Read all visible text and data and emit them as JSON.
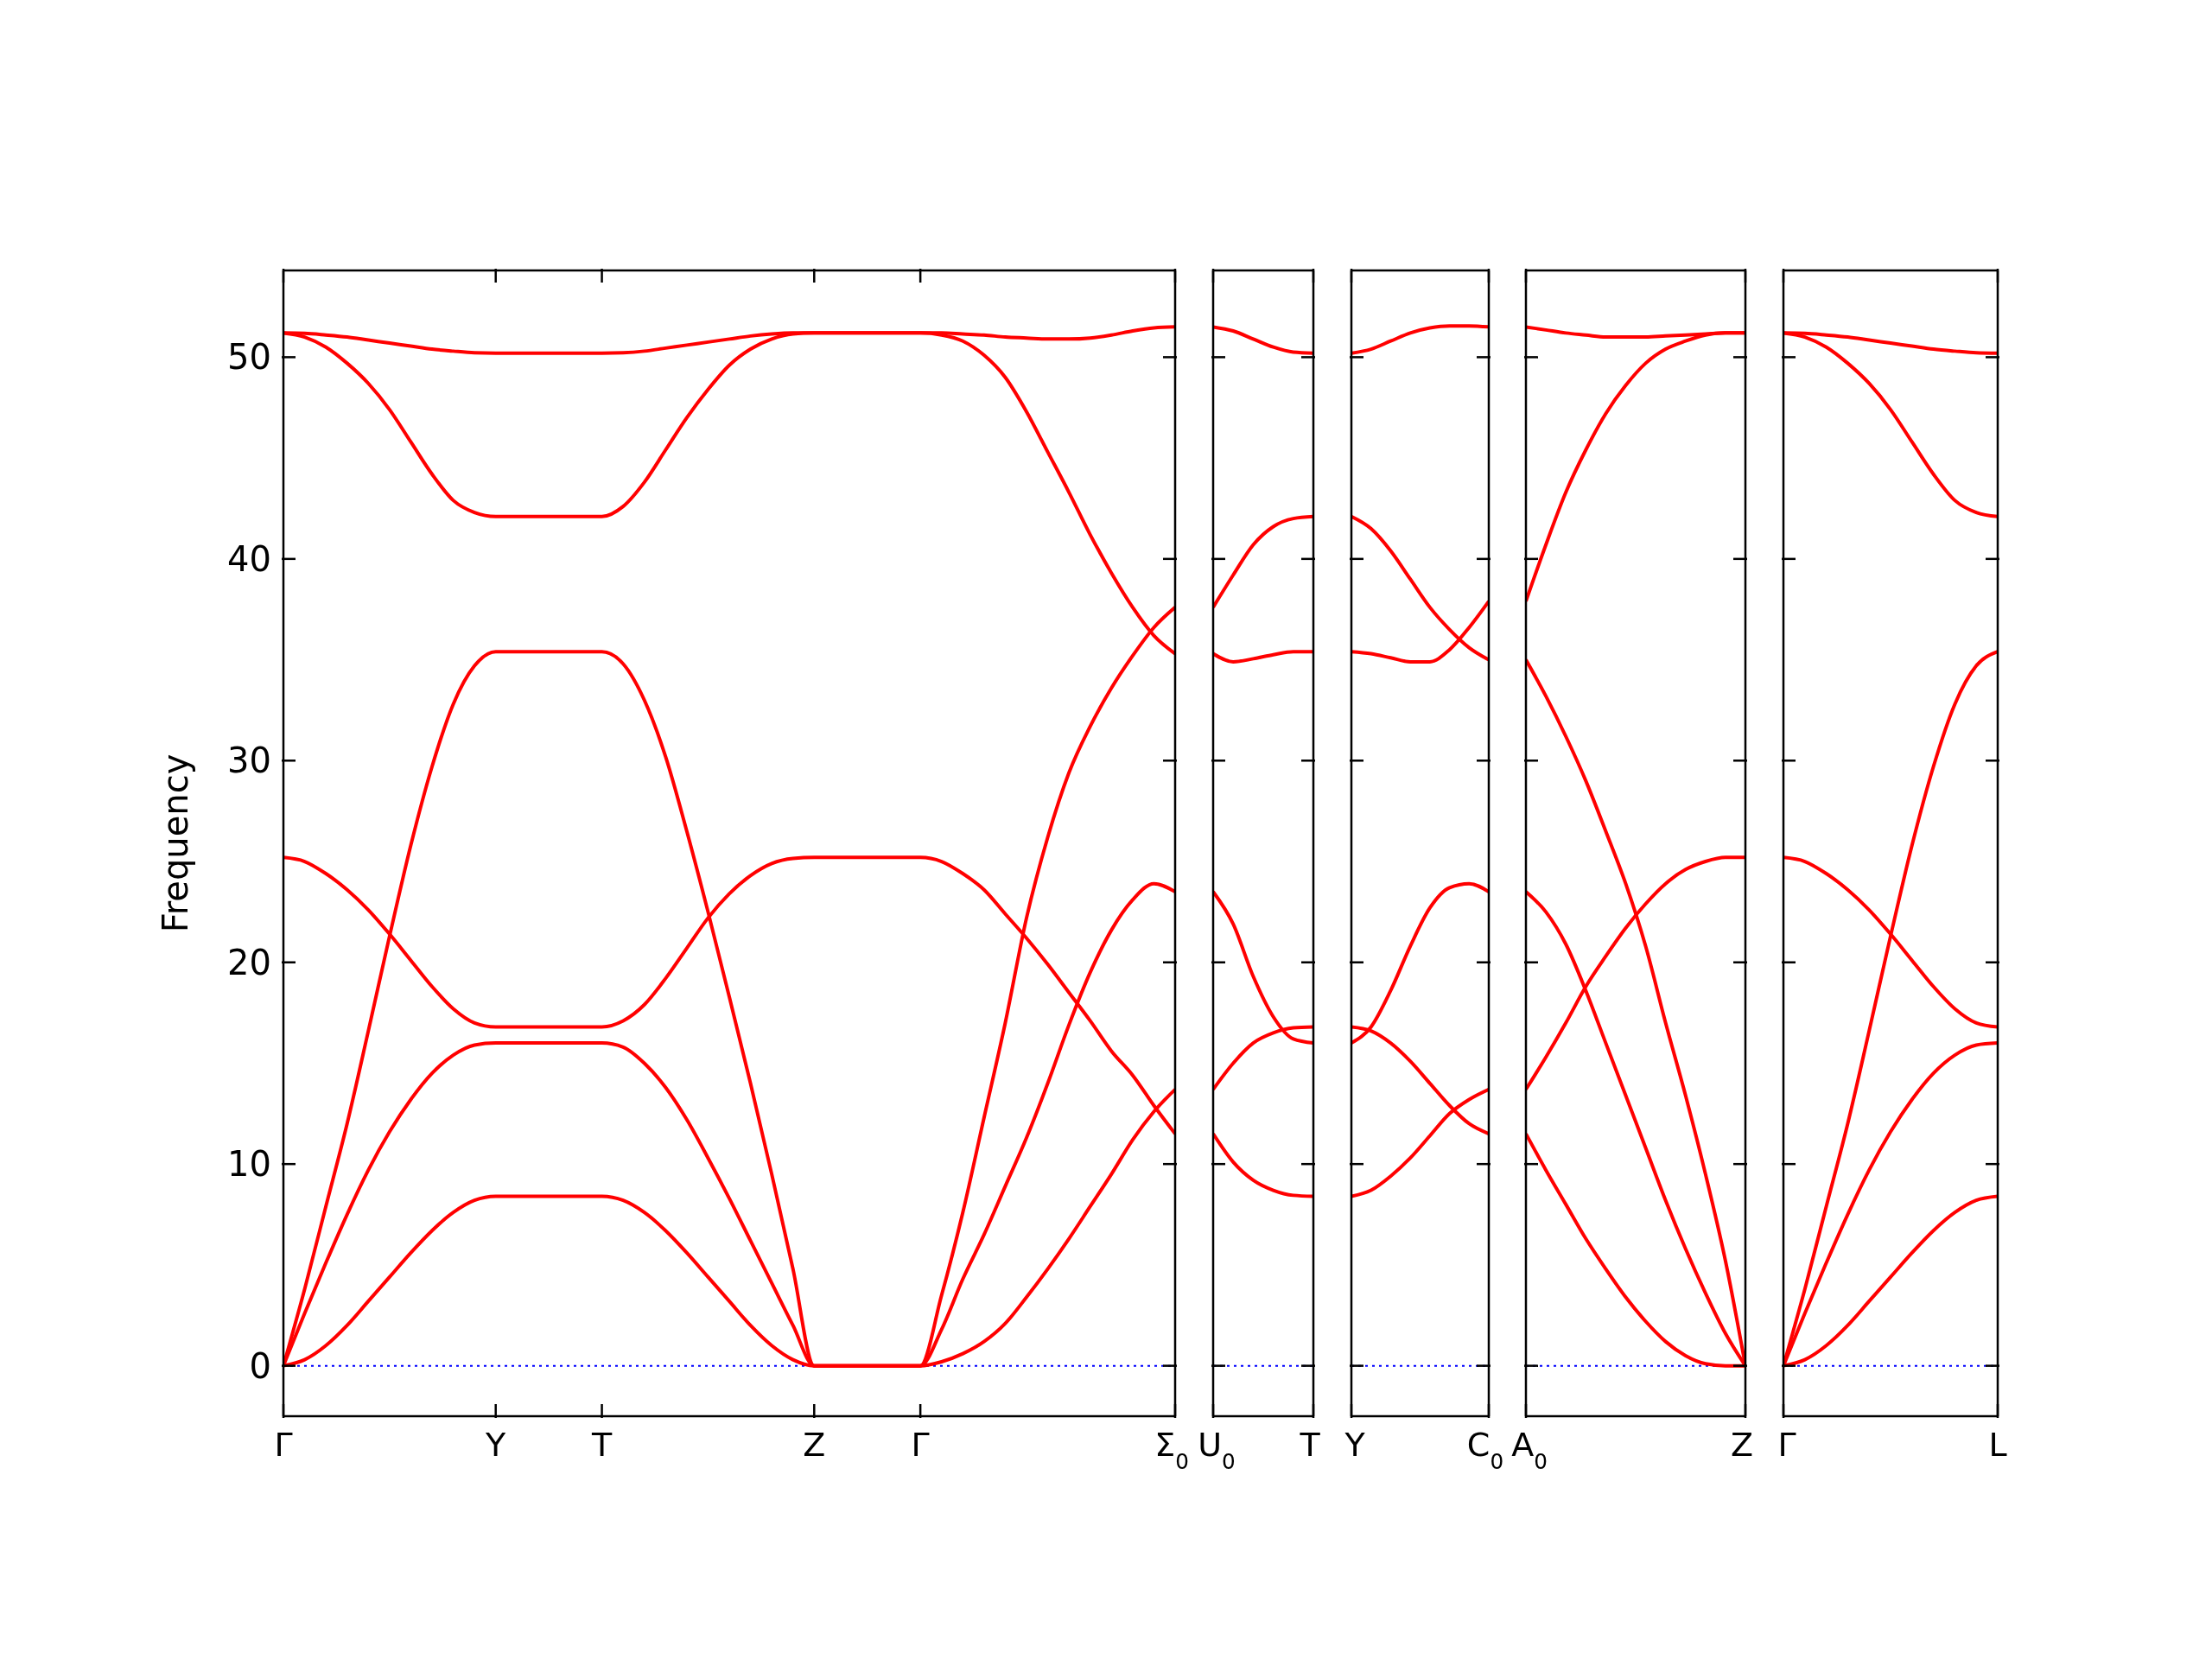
{
  "chart_data": [
    {
      "type": "line",
      "ylabel": "Frequency",
      "categories": [
        "Γ",
        null,
        null,
        null,
        null,
        null,
        null,
        null,
        null,
        null,
        "Y",
        null,
        null,
        null,
        null,
        "T",
        null,
        null,
        null,
        null,
        null,
        null,
        null,
        null,
        null,
        "Z",
        null,
        null,
        null,
        null,
        "Γ",
        null,
        null,
        null,
        null,
        null,
        null,
        null,
        null,
        null,
        null,
        null,
        "Σ$_{0}$"
      ],
      "series": [
        {
          "color": "#ff0000",
          "values": [
            51.2,
            51.18,
            51.1,
            51.0,
            50.85,
            50.7,
            50.55,
            50.4,
            50.3,
            50.22,
            50.2,
            50.2,
            50.2,
            50.2,
            50.2,
            50.2,
            50.22,
            50.3,
            50.45,
            50.6,
            50.75,
            50.9,
            51.05,
            51.15,
            51.2,
            51.2,
            51.2,
            51.2,
            51.2,
            51.2,
            51.2,
            51.2,
            51.15,
            51.1,
            51.0,
            50.95,
            50.9,
            50.9,
            50.95,
            51.1,
            51.3,
            51.45,
            51.5
          ]
        },
        {
          "color": "#ff0000",
          "values": [
            51.2,
            51.0,
            50.5,
            49.7,
            48.7,
            47.4,
            45.8,
            44.2,
            42.9,
            42.3,
            42.1,
            42.1,
            42.1,
            42.1,
            42.1,
            42.1,
            42.6,
            43.8,
            45.4,
            47.0,
            48.4,
            49.6,
            50.4,
            50.9,
            51.15,
            51.2,
            51.2,
            51.2,
            51.2,
            51.2,
            51.2,
            51.1,
            50.8,
            50.1,
            49.0,
            47.3,
            45.3,
            43.3,
            41.2,
            39.3,
            37.6,
            36.2,
            35.3
          ]
        },
        {
          "color": "#ff0000",
          "values": [
            0,
            3.8,
            7.9,
            12.0,
            16.6,
            21.3,
            25.8,
            29.7,
            32.8,
            34.7,
            35.4,
            35.4,
            35.4,
            35.4,
            35.4,
            35.4,
            34.8,
            33.0,
            30.2,
            26.5,
            22.5,
            18.3,
            14.0,
            9.5,
            4.8,
            0,
            0,
            0,
            0,
            0,
            0,
            3.5,
            7.6,
            12.3,
            17.0,
            22.2,
            26.2,
            29.4,
            31.7,
            33.6,
            35.2,
            36.6,
            37.6
          ]
        },
        {
          "color": "#ff0000",
          "values": [
            25.2,
            25.0,
            24.4,
            23.6,
            22.6,
            21.4,
            20.1,
            18.8,
            17.7,
            17.0,
            16.8,
            16.8,
            16.8,
            16.8,
            16.8,
            16.8,
            17.1,
            17.9,
            19.2,
            20.7,
            22.2,
            23.4,
            24.3,
            24.9,
            25.15,
            25.2,
            25.2,
            25.2,
            25.2,
            25.2,
            25.2,
            25.0,
            24.4,
            23.6,
            22.4,
            21.2,
            19.9,
            18.5,
            17.1,
            15.6,
            14.4,
            12.9,
            11.5
          ]
        },
        {
          "color": "#ff0000",
          "values": [
            0,
            2.6,
            5.1,
            7.5,
            9.7,
            11.6,
            13.2,
            14.5,
            15.4,
            15.9,
            16.0,
            16.0,
            16.0,
            16.0,
            16.0,
            16.0,
            15.8,
            15.0,
            13.8,
            12.2,
            10.3,
            8.3,
            6.2,
            4.1,
            2.0,
            0,
            0,
            0,
            0,
            0,
            0,
            1.8,
            4.3,
            6.5,
            8.9,
            11.3,
            14.0,
            16.9,
            19.5,
            21.6,
            23.1,
            23.9,
            23.5
          ]
        },
        {
          "color": "#ff0000",
          "values": [
            0,
            0.3,
            1.0,
            2.0,
            3.2,
            4.4,
            5.6,
            6.7,
            7.6,
            8.2,
            8.4,
            8.4,
            8.4,
            8.4,
            8.4,
            8.4,
            8.2,
            7.6,
            6.7,
            5.6,
            4.4,
            3.2,
            2.0,
            1.0,
            0.3,
            0,
            0,
            0,
            0,
            0,
            0,
            0.2,
            0.6,
            1.2,
            2.1,
            3.4,
            4.8,
            6.3,
            7.9,
            9.5,
            11.2,
            12.6,
            13.7
          ]
        }
      ],
      "ylim": [
        -2.5,
        54.3
      ],
      "yticks": [
        0,
        10,
        20,
        30,
        40,
        50
      ],
      "line_style": "solid",
      "ref_lines": [
        {
          "axis": "y",
          "value": 0,
          "color": "#0000ff",
          "line_style": "dotted"
        }
      ]
    },
    {
      "type": "line",
      "categories": [
        "U$_{0}$",
        null,
        null,
        null,
        null,
        "T"
      ],
      "series": [
        {
          "color": "#ff0000",
          "values": [
            51.5,
            51.3,
            50.9,
            50.5,
            50.25,
            50.2
          ]
        },
        {
          "color": "#ff0000",
          "values": [
            37.6,
            39.2,
            40.7,
            41.6,
            42.0,
            42.1
          ]
        },
        {
          "color": "#ff0000",
          "values": [
            35.3,
            34.9,
            35.05,
            35.25,
            35.4,
            35.4
          ]
        },
        {
          "color": "#ff0000",
          "values": [
            23.5,
            21.9,
            19.3,
            17.3,
            16.2,
            16.0
          ]
        },
        {
          "color": "#ff0000",
          "values": [
            13.7,
            15.0,
            16.0,
            16.5,
            16.75,
            16.8
          ]
        },
        {
          "color": "#ff0000",
          "values": [
            11.5,
            10.1,
            9.2,
            8.7,
            8.45,
            8.4
          ]
        }
      ],
      "ylim": [
        -2.5,
        54.3
      ],
      "yticks": [
        0,
        10,
        20,
        30,
        40,
        50
      ],
      "tick_labels": "x",
      "line_style": "solid",
      "ref_lines": [
        {
          "axis": "y",
          "value": 0,
          "color": "#0000ff",
          "line_style": "dotted"
        }
      ]
    },
    {
      "type": "line",
      "categories": [
        "Y",
        null,
        null,
        null,
        null,
        null,
        null,
        "C$_{0}$"
      ],
      "series": [
        {
          "color": "#ff0000",
          "values": [
            50.2,
            50.4,
            50.8,
            51.2,
            51.45,
            51.55,
            51.55,
            51.5
          ]
        },
        {
          "color": "#ff0000",
          "values": [
            42.1,
            41.5,
            40.4,
            39.0,
            37.6,
            36.5,
            35.6,
            35.0
          ]
        },
        {
          "color": "#ff0000",
          "values": [
            35.4,
            35.3,
            35.1,
            34.9,
            34.9,
            35.5,
            36.6,
            37.9
          ]
        },
        {
          "color": "#ff0000",
          "values": [
            16.0,
            16.8,
            18.6,
            20.8,
            22.7,
            23.7,
            23.9,
            23.5
          ]
        },
        {
          "color": "#ff0000",
          "values": [
            16.8,
            16.6,
            16.0,
            15.1,
            14.0,
            12.9,
            12.0,
            11.5
          ]
        },
        {
          "color": "#ff0000",
          "values": [
            8.4,
            8.7,
            9.4,
            10.3,
            11.4,
            12.5,
            13.2,
            13.7
          ]
        }
      ],
      "ylim": [
        -2.5,
        54.3
      ],
      "yticks": [
        0,
        10,
        20,
        30,
        40,
        50
      ],
      "tick_labels": "x",
      "line_style": "solid",
      "ref_lines": [
        {
          "axis": "y",
          "value": 0,
          "color": "#0000ff",
          "line_style": "dotted"
        }
      ]
    },
    {
      "type": "line",
      "categories": [
        "A$_{0}$",
        null,
        null,
        null,
        null,
        null,
        null,
        null,
        null,
        null,
        null,
        "Z"
      ],
      "series": [
        {
          "color": "#ff0000",
          "values": [
            51.5,
            51.35,
            51.2,
            51.1,
            51.0,
            51.0,
            51.0,
            51.05,
            51.1,
            51.15,
            51.2,
            51.2
          ]
        },
        {
          "color": "#ff0000",
          "values": [
            37.9,
            40.7,
            43.3,
            45.4,
            47.2,
            48.6,
            49.7,
            50.4,
            50.8,
            51.1,
            51.2,
            51.2
          ]
        },
        {
          "color": "#ff0000",
          "values": [
            35.0,
            33.2,
            31.2,
            29.0,
            26.5,
            23.9,
            20.8,
            17.0,
            13.4,
            9.5,
            5.2,
            0
          ]
        },
        {
          "color": "#ff0000",
          "values": [
            23.5,
            22.5,
            20.9,
            18.6,
            16.0,
            13.4,
            10.8,
            8.2,
            5.8,
            3.6,
            1.6,
            0
          ]
        },
        {
          "color": "#ff0000",
          "values": [
            13.7,
            15.3,
            17.0,
            18.8,
            20.3,
            21.7,
            22.9,
            23.9,
            24.6,
            25.0,
            25.2,
            25.2
          ]
        },
        {
          "color": "#ff0000",
          "values": [
            11.5,
            9.7,
            8.0,
            6.3,
            4.8,
            3.4,
            2.2,
            1.2,
            0.5,
            0.1,
            0,
            0
          ]
        }
      ],
      "ylim": [
        -2.5,
        54.3
      ],
      "yticks": [
        0,
        10,
        20,
        30,
        40,
        50
      ],
      "tick_labels": "x",
      "line_style": "solid",
      "ref_lines": [
        {
          "axis": "y",
          "value": 0,
          "color": "#0000ff",
          "line_style": "dotted"
        }
      ]
    },
    {
      "type": "line",
      "categories": [
        "Γ",
        null,
        null,
        null,
        null,
        null,
        null,
        null,
        null,
        null,
        "L"
      ],
      "series": [
        {
          "color": "#ff0000",
          "values": [
            51.2,
            51.18,
            51.1,
            51.0,
            50.85,
            50.7,
            50.55,
            50.4,
            50.3,
            50.22,
            50.2
          ]
        },
        {
          "color": "#ff0000",
          "values": [
            51.2,
            51.0,
            50.5,
            49.7,
            48.7,
            47.4,
            45.8,
            44.2,
            42.9,
            42.3,
            42.1
          ]
        },
        {
          "color": "#ff0000",
          "values": [
            0,
            3.8,
            7.9,
            12.0,
            16.6,
            21.3,
            25.8,
            29.7,
            32.8,
            34.7,
            35.4
          ]
        },
        {
          "color": "#ff0000",
          "values": [
            25.2,
            25.0,
            24.4,
            23.6,
            22.6,
            21.4,
            20.1,
            18.8,
            17.7,
            17.0,
            16.8
          ]
        },
        {
          "color": "#ff0000",
          "values": [
            0,
            2.6,
            5.1,
            7.5,
            9.7,
            11.6,
            13.2,
            14.5,
            15.4,
            15.9,
            16.0
          ]
        },
        {
          "color": "#ff0000",
          "values": [
            0,
            0.3,
            1.0,
            2.0,
            3.2,
            4.4,
            5.6,
            6.7,
            7.6,
            8.2,
            8.4
          ]
        }
      ],
      "ylim": [
        -2.5,
        54.3
      ],
      "yticks": [
        0,
        10,
        20,
        30,
        40,
        50
      ],
      "tick_labels": "x",
      "line_style": "solid",
      "ref_lines": [
        {
          "axis": "y",
          "value": 0,
          "color": "#0000ff",
          "line_style": "dotted"
        }
      ]
    }
  ]
}
